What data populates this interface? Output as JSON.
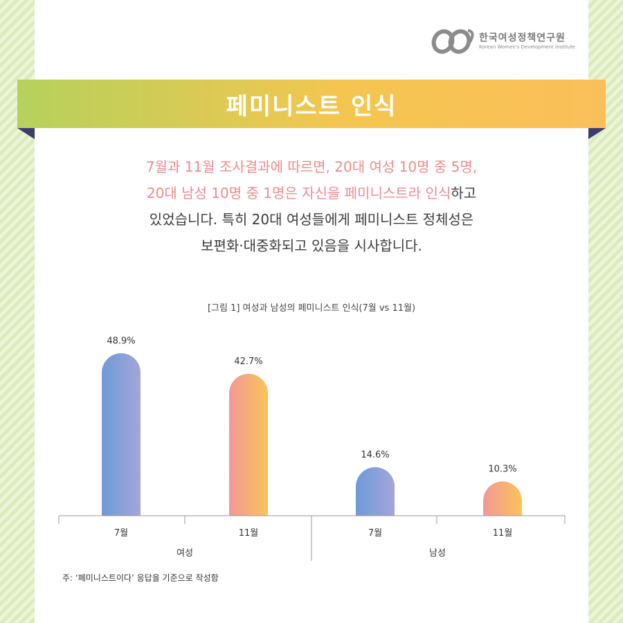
{
  "org": {
    "name": "한국여성정책연구원",
    "name_en": "Korean Women's Development Institute"
  },
  "banner": {
    "title": "페미니스트 인식"
  },
  "intro": {
    "line1": "7월과 11월 조사결과에 따르면, 20대 여성 10명 중 5명,",
    "line2_highlight": "20대 남성 10명 중 1명은 자신을 페미니스트라 인식",
    "line2_rest": "하고",
    "line3": "있었습니다. 특히 20대 여성들에게 페미니스트 정체성은",
    "line4": "보편화·대중화되고 있음을 시사합니다."
  },
  "chart_data": {
    "type": "bar",
    "title": "[그림 1] 여성과 남성의 페미니스트 인식(7월 vs 11월)",
    "groups": [
      "여성",
      "남성"
    ],
    "categories": [
      "7월",
      "11월",
      "7월",
      "11월"
    ],
    "values": [
      48.9,
      42.7,
      14.6,
      10.3
    ],
    "value_labels": [
      "48.9%",
      "42.7%",
      "14.6%",
      "10.3%"
    ],
    "series_colors": {
      "7월": [
        "#6f9bd8",
        "#a3a5d8"
      ],
      "11월": [
        "#f39896",
        "#fac35a"
      ]
    },
    "ylim": [
      0,
      50
    ],
    "grid": false
  },
  "note": "주: ‘페미니스트이다’ 응답을 기준으로 작성함"
}
